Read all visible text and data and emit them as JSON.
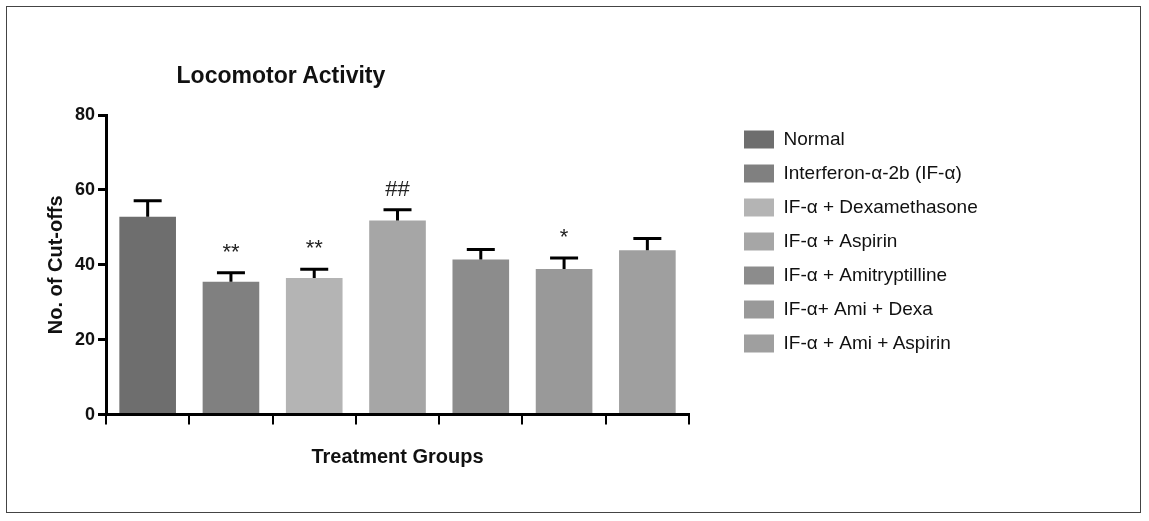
{
  "chart_data": {
    "type": "bar",
    "title": "Locomotor Activity",
    "xlabel": "Treatment Groups",
    "ylabel": "No. of Cut-offs",
    "categories": [
      null,
      null,
      null,
      null,
      null,
      null,
      null
    ],
    "series": [
      {
        "name": "Normal",
        "color": "#6e6e6e",
        "values": [
          52.8,
          null,
          null,
          null,
          null,
          null,
          null
        ],
        "errors": [
          4.3,
          null,
          null,
          null,
          null,
          null,
          null
        ]
      },
      {
        "name": "Interferon-α-2b (IF-α)",
        "color": "#808080",
        "values": [
          null,
          35.5,
          null,
          null,
          null,
          null,
          null
        ],
        "errors": [
          null,
          2.4,
          null,
          null,
          null,
          null,
          null
        ],
        "value_labels": [
          null,
          "**",
          null,
          null,
          null,
          null,
          null
        ]
      },
      {
        "name": "IF-α + Dexamethasone",
        "color": "#b4b4b4",
        "values": [
          null,
          null,
          36.5,
          null,
          null,
          null,
          null
        ],
        "errors": [
          null,
          null,
          2.3,
          null,
          null,
          null,
          null
        ],
        "value_labels": [
          null,
          null,
          "**",
          null,
          null,
          null,
          null
        ]
      },
      {
        "name": "IF-α + Aspirin",
        "color": "#a6a6a6",
        "values": [
          null,
          null,
          null,
          51.8,
          null,
          null,
          null
        ],
        "errors": [
          null,
          null,
          null,
          2.9,
          null,
          null,
          null
        ],
        "value_labels": [
          null,
          null,
          null,
          "##",
          null,
          null,
          null
        ]
      },
      {
        "name": "IF-α + Amitryptilline",
        "color": "#8c8c8c",
        "values": [
          null,
          null,
          null,
          null,
          41.4,
          null,
          null
        ],
        "errors": [
          null,
          null,
          null,
          null,
          2.7,
          null,
          null
        ]
      },
      {
        "name": "IF-α+ Ami + Dexa",
        "color": "#999999",
        "values": [
          null,
          null,
          null,
          null,
          null,
          38.9,
          null
        ],
        "errors": [
          null,
          null,
          null,
          null,
          null,
          2.9,
          null
        ],
        "value_labels": [
          null,
          null,
          null,
          null,
          null,
          "*",
          null
        ]
      },
      {
        "name": "IF-α + Ami + Aspirin",
        "color": "#9f9f9f",
        "values": [
          null,
          null,
          null,
          null,
          null,
          null,
          43.9
        ],
        "errors": [
          null,
          null,
          null,
          null,
          null,
          null,
          3.1
        ]
      }
    ],
    "ylim": [
      0,
      80
    ],
    "yticks": [
      0,
      20,
      40,
      60,
      80
    ],
    "grid": false,
    "legend": "right"
  }
}
